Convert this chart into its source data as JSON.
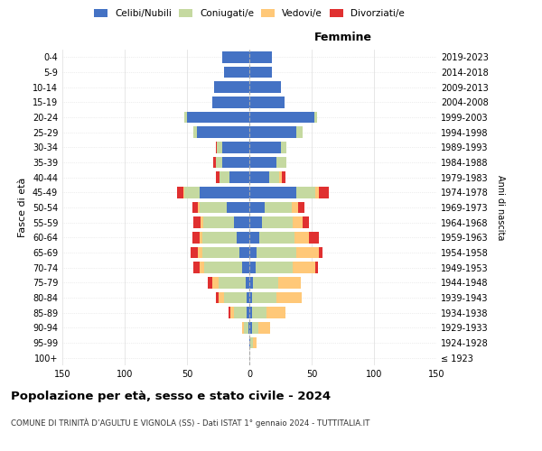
{
  "age_groups": [
    "100+",
    "95-99",
    "90-94",
    "85-89",
    "80-84",
    "75-79",
    "70-74",
    "65-69",
    "60-64",
    "55-59",
    "50-54",
    "45-49",
    "40-44",
    "35-39",
    "30-34",
    "25-29",
    "20-24",
    "15-19",
    "10-14",
    "5-9",
    "0-4"
  ],
  "birth_years": [
    "≤ 1923",
    "1924-1928",
    "1929-1933",
    "1934-1938",
    "1939-1943",
    "1944-1948",
    "1949-1953",
    "1954-1958",
    "1959-1963",
    "1964-1968",
    "1969-1973",
    "1974-1978",
    "1979-1983",
    "1984-1988",
    "1989-1993",
    "1994-1998",
    "1999-2003",
    "2004-2008",
    "2009-2013",
    "2014-2018",
    "2019-2023"
  ],
  "colors": {
    "celibi": "#4472c4",
    "coniugati": "#c5d9a0",
    "vedovi": "#ffc878",
    "divorziati": "#e03030"
  },
  "males": {
    "celibi": [
      0,
      0,
      1,
      2,
      2,
      3,
      6,
      8,
      10,
      12,
      18,
      40,
      16,
      22,
      22,
      42,
      50,
      30,
      28,
      20,
      22
    ],
    "coniugati": [
      0,
      0,
      3,
      10,
      18,
      22,
      30,
      30,
      28,
      25,
      22,
      12,
      8,
      5,
      4,
      3,
      2,
      0,
      0,
      0,
      0
    ],
    "vedovi": [
      0,
      0,
      2,
      3,
      5,
      5,
      4,
      3,
      2,
      2,
      1,
      1,
      0,
      0,
      0,
      0,
      0,
      0,
      0,
      0,
      0
    ],
    "divorziati": [
      0,
      0,
      0,
      2,
      2,
      3,
      5,
      6,
      6,
      6,
      5,
      5,
      3,
      2,
      1,
      0,
      0,
      0,
      0,
      0,
      0
    ]
  },
  "females": {
    "celibi": [
      0,
      1,
      2,
      2,
      2,
      3,
      5,
      6,
      8,
      10,
      12,
      38,
      16,
      22,
      25,
      38,
      52,
      28,
      25,
      18,
      18
    ],
    "coniugati": [
      0,
      2,
      5,
      12,
      20,
      20,
      30,
      32,
      28,
      25,
      22,
      15,
      8,
      8,
      5,
      5,
      2,
      0,
      0,
      0,
      0
    ],
    "vedovi": [
      0,
      3,
      10,
      15,
      20,
      18,
      18,
      18,
      12,
      8,
      5,
      3,
      2,
      0,
      0,
      0,
      0,
      0,
      0,
      0,
      0
    ],
    "divorziati": [
      0,
      0,
      0,
      0,
      0,
      0,
      2,
      3,
      8,
      5,
      5,
      8,
      3,
      0,
      0,
      0,
      0,
      0,
      0,
      0,
      0
    ]
  },
  "xlim": 150,
  "title": "Popolazione per età, sesso e stato civile - 2024",
  "subtitle": "COMUNE DI TRINITÀ D’AGULTU E VIGNOLA (SS) - Dati ISTAT 1° gennaio 2024 - TUTTITALIA.IT",
  "ylabel_left": "Fasce di età",
  "ylabel_right": "Anni di nascita",
  "xlabel_right": "Femmine",
  "background_color": "#ffffff",
  "grid_color": "#dddddd"
}
